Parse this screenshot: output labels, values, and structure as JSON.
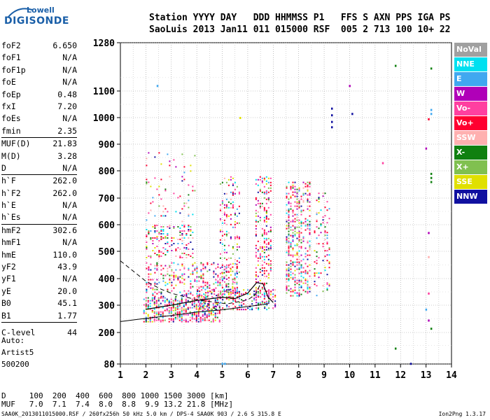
{
  "logo": {
    "line1": "Lowell",
    "line2": "DIGISONDE"
  },
  "header": {
    "row1": "Station YYYY DAY   DDD HHMMSS P1   FFS S AXN PPS IGA PS",
    "row2": "SaoLuis 2013 Jan11 011 015000 RSF  005 2 713 100 10+ 22"
  },
  "params": [
    {
      "name": "foF2",
      "value": "6.650"
    },
    {
      "name": "foF1",
      "value": "N/A"
    },
    {
      "name": "foF1p",
      "value": "N/A"
    },
    {
      "name": "foE",
      "value": "N/A"
    },
    {
      "name": "foEp",
      "value": "0.48"
    },
    {
      "name": "fxI",
      "value": "7.20"
    },
    {
      "name": "foEs",
      "value": "N/A"
    },
    {
      "name": "fmin",
      "value": "2.35"
    },
    {
      "name": "MUF(D)",
      "value": "21.83"
    },
    {
      "name": "M(D)",
      "value": "3.28"
    },
    {
      "name": "D",
      "value": "N/A"
    },
    {
      "name": "h`F",
      "value": "262.0"
    },
    {
      "name": "h`F2",
      "value": "262.0"
    },
    {
      "name": "h`E",
      "value": "N/A"
    },
    {
      "name": "h`Es",
      "value": "N/A"
    },
    {
      "name": "hmF2",
      "value": "302.6"
    },
    {
      "name": "hmF1",
      "value": "N/A"
    },
    {
      "name": "hmE",
      "value": "110.0"
    },
    {
      "name": "yF2",
      "value": "43.9"
    },
    {
      "name": "yF1",
      "value": "N/A"
    },
    {
      "name": "yE",
      "value": "20.0"
    },
    {
      "name": "B0",
      "value": "45.1"
    },
    {
      "name": "B1",
      "value": "1.77"
    },
    {
      "name": "C-level",
      "value": "44"
    }
  ],
  "autoscale": {
    "line1": "Auto:",
    "line2": "Artist5",
    "line3": "500200"
  },
  "muf_table": {
    "row1": "D     100  200  400  600  800 1000 1500 3000 [km]",
    "row2": "MUF   7.0  7.1  7.4  8.0  8.8  9.9 13.2 21.8 [MHz]"
  },
  "footer": "SAA0K_2013011015000.RSF / 260fx256h 50 kHz 5.0 km / DPS-4 SAA0K 903 / 2.6 S 315.8 E",
  "version": "Ion2Png 1.3.17",
  "legend": [
    {
      "label": "NoVal",
      "color": "#a0a0a0"
    },
    {
      "label": "NNE",
      "color": "#00e0f0"
    },
    {
      "label": "E",
      "color": "#40a8f0"
    },
    {
      "label": "W",
      "color": "#b000b8"
    },
    {
      "label": "Vo-",
      "color": "#ff40a0"
    },
    {
      "label": "Vo+",
      "color": "#ff0030"
    },
    {
      "label": "SSW",
      "color": "#ffb0b0"
    },
    {
      "label": "X-",
      "color": "#108010"
    },
    {
      "label": "X+",
      "color": "#80c050"
    },
    {
      "label": "SSE",
      "color": "#e0e000"
    },
    {
      "label": "NNW",
      "color": "#1010a0"
    }
  ],
  "chart_data": {
    "type": "scatter",
    "xlim": [
      1,
      14
    ],
    "ylim": [
      80,
      1280
    ],
    "x_ticks": [
      1,
      2,
      3,
      4,
      5,
      6,
      7,
      8,
      9,
      10,
      11,
      12,
      13,
      14
    ],
    "y_ticks": [
      80,
      200,
      300,
      400,
      500,
      600,
      700,
      800,
      900,
      1000,
      1100,
      1280
    ],
    "clusters": [
      {
        "x": [
          1.9,
          5.0
        ],
        "y": [
          235,
          330
        ],
        "density": 0.55
      },
      {
        "x": [
          2.0,
          3.9
        ],
        "y": [
          470,
          600
        ],
        "density": 0.25
      },
      {
        "x": [
          2.0,
          4.0
        ],
        "y": [
          600,
          870
        ],
        "density": 0.06
      },
      {
        "x": [
          2.0,
          5.7
        ],
        "y": [
          330,
          460
        ],
        "density": 0.22
      },
      {
        "x": [
          4.9,
          5.8
        ],
        "y": [
          320,
          780
        ],
        "density": 0.18
      },
      {
        "x": [
          6.3,
          7.0
        ],
        "y": [
          300,
          780
        ],
        "density": 0.28
      },
      {
        "x": [
          7.5,
          8.5
        ],
        "y": [
          330,
          760
        ],
        "density": 0.35
      },
      {
        "x": [
          8.6,
          9.3
        ],
        "y": [
          330,
          720
        ],
        "density": 0.15
      },
      {
        "x": [
          4.0,
          7.2
        ],
        "y": [
          280,
          360
        ],
        "density": 0.3
      }
    ],
    "sparse_points": [
      {
        "x": 11.8,
        "y": 1195,
        "c": "#108010"
      },
      {
        "x": 13.2,
        "y": 1185,
        "c": "#108010"
      },
      {
        "x": 10.0,
        "y": 1120,
        "c": "#b000b8"
      },
      {
        "x": 2.45,
        "y": 1120,
        "c": "#40a8f0"
      },
      {
        "x": 9.3,
        "y": 1035,
        "c": "#1010a0"
      },
      {
        "x": 9.3,
        "y": 1010,
        "c": "#1010a0"
      },
      {
        "x": 9.3,
        "y": 985,
        "c": "#1010a0"
      },
      {
        "x": 9.3,
        "y": 965,
        "c": "#1010a0"
      },
      {
        "x": 10.1,
        "y": 1015,
        "c": "#1010a0"
      },
      {
        "x": 13.2,
        "y": 1030,
        "c": "#40a8f0"
      },
      {
        "x": 13.2,
        "y": 1015,
        "c": "#40a8f0"
      },
      {
        "x": 13.1,
        "y": 995,
        "c": "#ff0030"
      },
      {
        "x": 13.0,
        "y": 885,
        "c": "#b000b8"
      },
      {
        "x": 11.3,
        "y": 830,
        "c": "#ff40a0"
      },
      {
        "x": 13.2,
        "y": 790,
        "c": "#108010"
      },
      {
        "x": 13.2,
        "y": 775,
        "c": "#108010"
      },
      {
        "x": 13.2,
        "y": 760,
        "c": "#108010"
      },
      {
        "x": 13.1,
        "y": 570,
        "c": "#b000b8"
      },
      {
        "x": 13.1,
        "y": 480,
        "c": "#ffb0b0"
      },
      {
        "x": 13.1,
        "y": 345,
        "c": "#ff40a0"
      },
      {
        "x": 13.0,
        "y": 285,
        "c": "#40a8f0"
      },
      {
        "x": 13.1,
        "y": 245,
        "c": "#b000b8"
      },
      {
        "x": 13.2,
        "y": 215,
        "c": "#108010"
      },
      {
        "x": 11.8,
        "y": 140,
        "c": "#108010"
      },
      {
        "x": 12.4,
        "y": 82,
        "c": "#1010a0"
      },
      {
        "x": 5.0,
        "y": 82,
        "c": "#40a8f0"
      },
      {
        "x": 5.1,
        "y": 82,
        "c": "#40a8f0"
      },
      {
        "x": 5.7,
        "y": 1000,
        "c": "#e0e000"
      }
    ],
    "profile_dashed": [
      [
        1.0,
        465
      ],
      [
        2.0,
        390
      ],
      [
        2.6,
        360
      ],
      [
        3.0,
        345
      ],
      [
        4.0,
        320
      ],
      [
        5.2,
        305
      ],
      [
        6.0,
        320
      ],
      [
        6.3,
        340
      ],
      [
        6.5,
        380
      ]
    ],
    "trace_lower": [
      [
        1.0,
        240
      ],
      [
        2.0,
        252
      ],
      [
        3.0,
        262
      ],
      [
        4.0,
        275
      ],
      [
        5.0,
        283
      ],
      [
        6.0,
        295
      ],
      [
        6.8,
        305
      ]
    ],
    "trace_profile": [
      [
        2.0,
        285
      ],
      [
        3.0,
        300
      ],
      [
        4.0,
        318
      ],
      [
        5.0,
        330
      ],
      [
        5.5,
        325
      ],
      [
        6.0,
        345
      ],
      [
        6.35,
        385
      ],
      [
        6.6,
        380
      ],
      [
        6.8,
        330
      ],
      [
        7.0,
        310
      ]
    ]
  }
}
